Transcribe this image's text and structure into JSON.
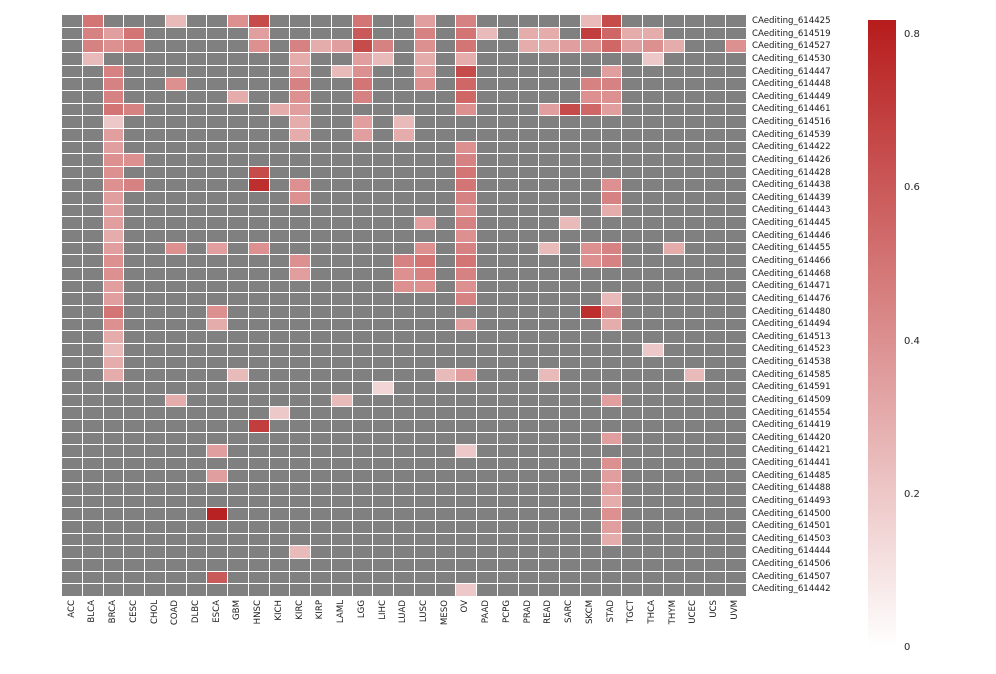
{
  "figure": {
    "background": "#ffffff"
  },
  "chart_data": {
    "type": "heatmap",
    "title": "",
    "xlabel": "",
    "ylabel": "",
    "na_color": "#808080",
    "grid_color": "#ffffff",
    "colormap": {
      "min_color": "#ffffff",
      "max_color": "#b71c1c",
      "vmin": 0,
      "vmax": 0.82
    },
    "colorbar": {
      "tick_labels": [
        "0.8",
        "0.6",
        "0.4",
        "0.2",
        "0"
      ],
      "tick_values": [
        0.8,
        0.6,
        0.4,
        0.2,
        0
      ],
      "position": "right"
    },
    "columns": [
      "ACC",
      "BLCA",
      "BRCA",
      "CESC",
      "CHOL",
      "COAD",
      "DLBC",
      "ESCA",
      "GBM",
      "HNSC",
      "KICH",
      "KIRC",
      "KIRP",
      "LAML",
      "LGG",
      "LIHC",
      "LUAD",
      "LUSC",
      "MESO",
      "OV",
      "PAAD",
      "PCPG",
      "PRAD",
      "READ",
      "SARC",
      "SKCM",
      "STAD",
      "TGCT",
      "THCA",
      "THYM",
      "UCEC",
      "UCS",
      "UVM"
    ],
    "rows": [
      {
        "id": "CAediting_614425",
        "cells": [
          [
            "BLCA",
            0.5
          ],
          [
            "COAD",
            0.25
          ],
          [
            "GBM",
            0.4
          ],
          [
            "HNSC",
            0.65
          ],
          [
            "LGG",
            0.5
          ],
          [
            "LUSC",
            0.35
          ],
          [
            "OV",
            0.45
          ],
          [
            "SKCM",
            0.25
          ],
          [
            "STAD",
            0.65
          ]
        ]
      },
      {
        "id": "CAediting_614519",
        "cells": [
          [
            "BLCA",
            0.45
          ],
          [
            "BRCA",
            0.35
          ],
          [
            "CESC",
            0.5
          ],
          [
            "HNSC",
            0.35
          ],
          [
            "LGG",
            0.6
          ],
          [
            "LUSC",
            0.45
          ],
          [
            "OV",
            0.5
          ],
          [
            "PAAD",
            0.25
          ],
          [
            "PRAD",
            0.3
          ],
          [
            "READ",
            0.3
          ],
          [
            "SKCM",
            0.7
          ],
          [
            "STAD",
            0.55
          ],
          [
            "TGCT",
            0.3
          ],
          [
            "THCA",
            0.3
          ]
        ]
      },
      {
        "id": "CAediting_614527",
        "cells": [
          [
            "BLCA",
            0.45
          ],
          [
            "BRCA",
            0.4
          ],
          [
            "CESC",
            0.45
          ],
          [
            "HNSC",
            0.4
          ],
          [
            "KIRC",
            0.45
          ],
          [
            "KIRP",
            0.3
          ],
          [
            "LAML",
            0.35
          ],
          [
            "LGG",
            0.65
          ],
          [
            "LIHC",
            0.45
          ],
          [
            "LUSC",
            0.4
          ],
          [
            "OV",
            0.5
          ],
          [
            "PRAD",
            0.3
          ],
          [
            "READ",
            0.3
          ],
          [
            "SARC",
            0.35
          ],
          [
            "SKCM",
            0.4
          ],
          [
            "STAD",
            0.55
          ],
          [
            "TGCT",
            0.35
          ],
          [
            "THCA",
            0.4
          ],
          [
            "THYM",
            0.3
          ],
          [
            "UVM",
            0.4
          ]
        ]
      },
      {
        "id": "CAediting_614530",
        "cells": [
          [
            "BLCA",
            0.25
          ],
          [
            "KIRC",
            0.3
          ],
          [
            "LGG",
            0.35
          ],
          [
            "LIHC",
            0.25
          ],
          [
            "LUSC",
            0.3
          ],
          [
            "OV",
            0.3
          ],
          [
            "THCA",
            0.2
          ]
        ]
      },
      {
        "id": "CAediting_614447",
        "cells": [
          [
            "BRCA",
            0.45
          ],
          [
            "KIRC",
            0.35
          ],
          [
            "LAML",
            0.25
          ],
          [
            "LGG",
            0.4
          ],
          [
            "LUSC",
            0.35
          ],
          [
            "OV",
            0.65
          ],
          [
            "STAD",
            0.35
          ]
        ]
      },
      {
        "id": "CAediting_614448",
        "cells": [
          [
            "BRCA",
            0.45
          ],
          [
            "COAD",
            0.4
          ],
          [
            "KIRC",
            0.45
          ],
          [
            "LGG",
            0.5
          ],
          [
            "LUSC",
            0.4
          ],
          [
            "OV",
            0.55
          ],
          [
            "SKCM",
            0.45
          ],
          [
            "STAD",
            0.45
          ]
        ]
      },
      {
        "id": "CAediting_614449",
        "cells": [
          [
            "BRCA",
            0.45
          ],
          [
            "GBM",
            0.3
          ],
          [
            "KIRC",
            0.4
          ],
          [
            "LGG",
            0.45
          ],
          [
            "OV",
            0.55
          ],
          [
            "SKCM",
            0.4
          ],
          [
            "STAD",
            0.4
          ]
        ]
      },
      {
        "id": "CAediting_614461",
        "cells": [
          [
            "BRCA",
            0.5
          ],
          [
            "CESC",
            0.45
          ],
          [
            "KICH",
            0.3
          ],
          [
            "KIRC",
            0.35
          ],
          [
            "OV",
            0.4
          ],
          [
            "READ",
            0.35
          ],
          [
            "SARC",
            0.65
          ],
          [
            "SKCM",
            0.55
          ],
          [
            "STAD",
            0.35
          ]
        ]
      },
      {
        "id": "CAediting_614516",
        "cells": [
          [
            "BRCA",
            0.2
          ],
          [
            "KIRC",
            0.3
          ],
          [
            "LGG",
            0.35
          ],
          [
            "LUAD",
            0.25
          ]
        ]
      },
      {
        "id": "CAediting_614539",
        "cells": [
          [
            "BRCA",
            0.35
          ],
          [
            "KIRC",
            0.3
          ],
          [
            "LGG",
            0.35
          ],
          [
            "LUAD",
            0.3
          ]
        ]
      },
      {
        "id": "CAediting_614422",
        "cells": [
          [
            "BRCA",
            0.35
          ],
          [
            "OV",
            0.4
          ]
        ]
      },
      {
        "id": "CAediting_614426",
        "cells": [
          [
            "BRCA",
            0.4
          ],
          [
            "CESC",
            0.4
          ],
          [
            "OV",
            0.45
          ]
        ]
      },
      {
        "id": "CAediting_614428",
        "cells": [
          [
            "BRCA",
            0.4
          ],
          [
            "HNSC",
            0.65
          ],
          [
            "OV",
            0.5
          ]
        ]
      },
      {
        "id": "CAediting_614438",
        "cells": [
          [
            "BRCA",
            0.4
          ],
          [
            "CESC",
            0.45
          ],
          [
            "HNSC",
            0.75
          ],
          [
            "KIRC",
            0.4
          ],
          [
            "OV",
            0.5
          ],
          [
            "STAD",
            0.4
          ]
        ]
      },
      {
        "id": "CAediting_614439",
        "cells": [
          [
            "BRCA",
            0.35
          ],
          [
            "KIRC",
            0.4
          ],
          [
            "OV",
            0.45
          ],
          [
            "STAD",
            0.45
          ]
        ]
      },
      {
        "id": "CAediting_614443",
        "cells": [
          [
            "BRCA",
            0.35
          ],
          [
            "OV",
            0.4
          ],
          [
            "STAD",
            0.3
          ]
        ]
      },
      {
        "id": "CAediting_614445",
        "cells": [
          [
            "BRCA",
            0.35
          ],
          [
            "LUSC",
            0.35
          ],
          [
            "OV",
            0.45
          ],
          [
            "SARC",
            0.25
          ]
        ]
      },
      {
        "id": "CAediting_614446",
        "cells": [
          [
            "BRCA",
            0.3
          ],
          [
            "OV",
            0.4
          ]
        ]
      },
      {
        "id": "CAediting_614455",
        "cells": [
          [
            "BRCA",
            0.35
          ],
          [
            "COAD",
            0.4
          ],
          [
            "ESCA",
            0.35
          ],
          [
            "HNSC",
            0.4
          ],
          [
            "LUSC",
            0.4
          ],
          [
            "OV",
            0.45
          ],
          [
            "READ",
            0.25
          ],
          [
            "SKCM",
            0.4
          ],
          [
            "STAD",
            0.45
          ],
          [
            "THYM",
            0.3
          ]
        ]
      },
      {
        "id": "CAediting_614466",
        "cells": [
          [
            "BRCA",
            0.4
          ],
          [
            "KIRC",
            0.4
          ],
          [
            "LUAD",
            0.45
          ],
          [
            "LUSC",
            0.5
          ],
          [
            "OV",
            0.5
          ],
          [
            "SKCM",
            0.4
          ],
          [
            "STAD",
            0.45
          ]
        ]
      },
      {
        "id": "CAediting_614468",
        "cells": [
          [
            "BRCA",
            0.4
          ],
          [
            "KIRC",
            0.35
          ],
          [
            "LUAD",
            0.4
          ],
          [
            "LUSC",
            0.45
          ],
          [
            "OV",
            0.45
          ]
        ]
      },
      {
        "id": "CAediting_614471",
        "cells": [
          [
            "BRCA",
            0.35
          ],
          [
            "LUAD",
            0.4
          ],
          [
            "LUSC",
            0.4
          ],
          [
            "OV",
            0.4
          ]
        ]
      },
      {
        "id": "CAediting_614476",
        "cells": [
          [
            "BRCA",
            0.35
          ],
          [
            "OV",
            0.45
          ],
          [
            "STAD",
            0.25
          ]
        ]
      },
      {
        "id": "CAediting_614480",
        "cells": [
          [
            "BRCA",
            0.5
          ],
          [
            "ESCA",
            0.4
          ],
          [
            "SKCM",
            0.75
          ],
          [
            "STAD",
            0.45
          ]
        ]
      },
      {
        "id": "CAediting_614494",
        "cells": [
          [
            "BRCA",
            0.4
          ],
          [
            "ESCA",
            0.3
          ],
          [
            "OV",
            0.35
          ],
          [
            "STAD",
            0.3
          ]
        ]
      },
      {
        "id": "CAediting_614513",
        "cells": [
          [
            "BRCA",
            0.3
          ]
        ]
      },
      {
        "id": "CAediting_614523",
        "cells": [
          [
            "BRCA",
            0.25
          ],
          [
            "THCA",
            0.2
          ]
        ]
      },
      {
        "id": "CAediting_614538",
        "cells": [
          [
            "BRCA",
            0.3
          ]
        ]
      },
      {
        "id": "CAediting_614585",
        "cells": [
          [
            "BRCA",
            0.3
          ],
          [
            "GBM",
            0.25
          ],
          [
            "MESO",
            0.25
          ],
          [
            "OV",
            0.35
          ],
          [
            "READ",
            0.25
          ],
          [
            "UCEC",
            0.25
          ]
        ]
      },
      {
        "id": "CAediting_614591",
        "cells": [
          [
            "LIHC",
            0.15
          ]
        ]
      },
      {
        "id": "CAediting_614509",
        "cells": [
          [
            "COAD",
            0.3
          ],
          [
            "LAML",
            0.25
          ],
          [
            "STAD",
            0.35
          ]
        ]
      },
      {
        "id": "CAediting_614554",
        "cells": [
          [
            "KICH",
            0.2
          ]
        ]
      },
      {
        "id": "CAediting_614419",
        "cells": [
          [
            "HNSC",
            0.7
          ]
        ]
      },
      {
        "id": "CAediting_614420",
        "cells": [
          [
            "STAD",
            0.35
          ]
        ]
      },
      {
        "id": "CAediting_614421",
        "cells": [
          [
            "ESCA",
            0.35
          ],
          [
            "OV",
            0.2
          ]
        ]
      },
      {
        "id": "CAediting_614441",
        "cells": [
          [
            "STAD",
            0.4
          ]
        ]
      },
      {
        "id": "CAediting_614485",
        "cells": [
          [
            "ESCA",
            0.35
          ],
          [
            "STAD",
            0.35
          ]
        ]
      },
      {
        "id": "CAediting_614488",
        "cells": [
          [
            "STAD",
            0.35
          ]
        ]
      },
      {
        "id": "CAediting_614493",
        "cells": [
          [
            "STAD",
            0.3
          ]
        ]
      },
      {
        "id": "CAediting_614500",
        "cells": [
          [
            "ESCA",
            0.8
          ],
          [
            "STAD",
            0.4
          ]
        ]
      },
      {
        "id": "CAediting_614501",
        "cells": [
          [
            "STAD",
            0.35
          ]
        ]
      },
      {
        "id": "CAediting_614503",
        "cells": [
          [
            "STAD",
            0.3
          ]
        ]
      },
      {
        "id": "CAediting_614444",
        "cells": [
          [
            "KIRC",
            0.25
          ]
        ]
      },
      {
        "id": "CAediting_614506",
        "cells": []
      },
      {
        "id": "CAediting_614507",
        "cells": [
          [
            "ESCA",
            0.6
          ]
        ]
      },
      {
        "id": "CAediting_614442",
        "cells": [
          [
            "OV",
            0.2
          ]
        ]
      }
    ],
    "layout": {
      "legend_position": "right",
      "grid": true,
      "row_labels_side": "right",
      "col_labels_side": "bottom",
      "col_label_rotation": 90
    }
  }
}
